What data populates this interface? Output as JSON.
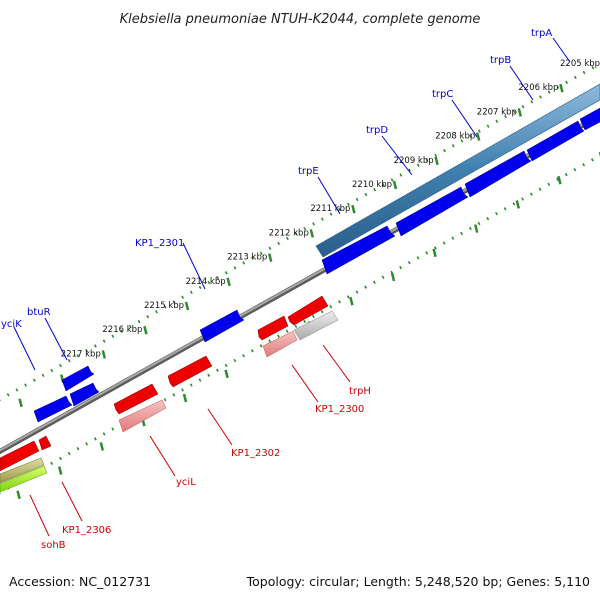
{
  "title": "Klebsiella pneumoniae NTUH-K2044, complete genome",
  "footer": {
    "accession": "Accession: NC_012731",
    "topology": "Topology: circular; Length: 5,248,520 bp; Genes: 5,110"
  },
  "colors": {
    "forward_gene": "#0000ee",
    "reverse_gene": "#ee0000",
    "forward_operon": "#3f7fae",
    "reverse_operon": "#c8c8c8",
    "tick": "#2e8b2e",
    "backbone": "#7a7a7a"
  },
  "ticks": [
    "2205 kbp",
    "2206 kbp",
    "2207 kbp",
    "2208 kbp",
    "2209 kbp",
    "2210 kbp",
    "2211 kbp",
    "2212 kbp",
    "2213 kbp",
    "2214 kbp",
    "2215 kbp",
    "2216 kbp",
    "2217 kbp"
  ],
  "forward_genes": [
    "trpA",
    "trpB",
    "trpC",
    "trpD",
    "trpE",
    "KP1_2301",
    "btuR",
    "yciK"
  ],
  "reverse_genes": [
    "trpH",
    "KP1_2300",
    "KP1_2302",
    "yciL",
    "KP1_2306",
    "sohB"
  ]
}
